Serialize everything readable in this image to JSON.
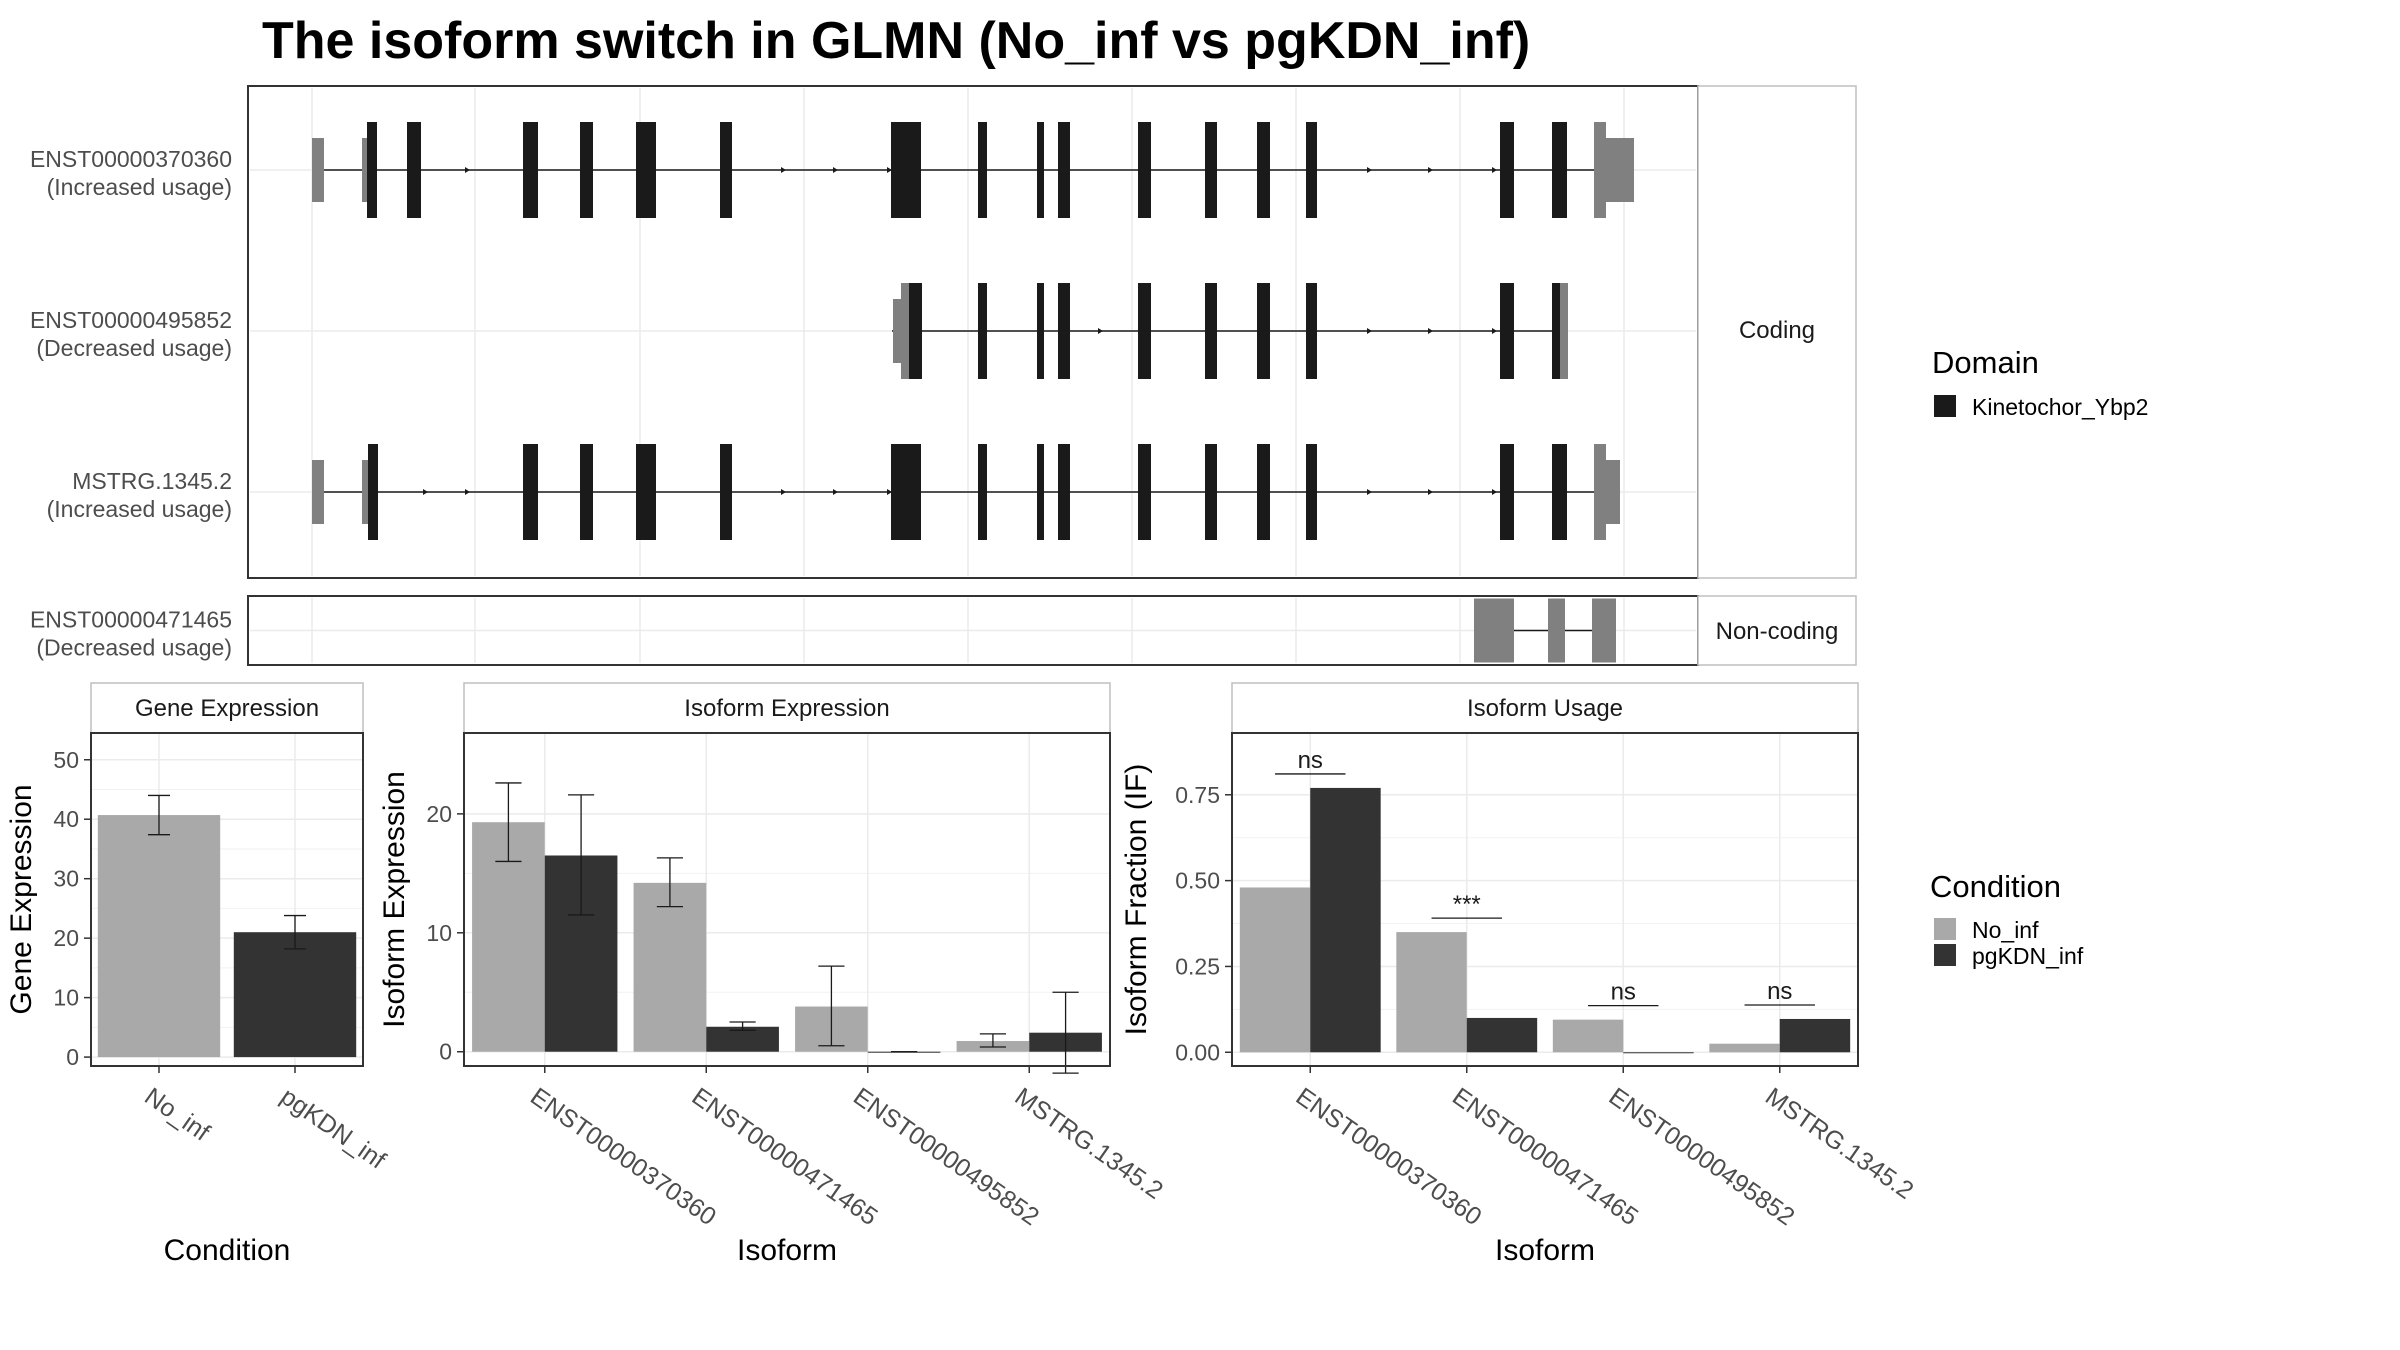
{
  "title": "The isoform switch in GLMN (No_inf vs pgKDN_inf)",
  "colors": {
    "domain": "#1a1a1a",
    "utr": "#808080",
    "no_inf": "#a9a9a9",
    "pgkdn_inf": "#333333",
    "grid": "#ebebeb",
    "border": "#333333",
    "axis_text": "#4d4d4d"
  },
  "chart_data": [
    {
      "type": "structure",
      "name": "isoform-structures",
      "transcripts": [
        {
          "id": "ENST00000370360",
          "note": "(Increased usage)",
          "facet": "Coding"
        },
        {
          "id": "ENST00000495852",
          "note": "(Decreased usage)",
          "facet": "Coding"
        },
        {
          "id": "MSTRG.1345.2",
          "note": "(Increased usage)",
          "facet": "Coding"
        },
        {
          "id": "ENST00000471465",
          "note": "(Decreased usage)",
          "facet": "Non-coding"
        }
      ],
      "facets": [
        "Coding",
        "Non-coding"
      ],
      "legend": {
        "title": "Domain",
        "items": [
          "Kinetochor_Ybp2"
        ]
      }
    },
    {
      "type": "bar",
      "name": "gene-expression",
      "panel_title": "Gene Expression",
      "xlabel": "Condition",
      "ylabel": "Gene Expression",
      "categories": [
        "No_inf",
        "pgKDN_inf"
      ],
      "values": [
        40.7,
        21.0
      ],
      "errors": [
        [
          37.4,
          44.0
        ],
        [
          18.2,
          23.8
        ]
      ],
      "yticks": [
        0,
        10,
        20,
        30,
        40,
        50
      ],
      "ylim": [
        -1.5,
        54.5
      ]
    },
    {
      "type": "bar",
      "name": "isoform-expression",
      "panel_title": "Isoform Expression",
      "xlabel": "Isoform",
      "ylabel": "Isoform Expression",
      "categories": [
        "ENST00000370360",
        "ENST00000471465",
        "ENST00000495852",
        "MSTRG.1345.2"
      ],
      "series": [
        {
          "name": "No_inf",
          "values": [
            19.3,
            14.2,
            3.8,
            0.9
          ],
          "errors": [
            [
              16.0,
              22.6
            ],
            [
              12.2,
              16.3
            ],
            [
              0.5,
              7.2
            ],
            [
              0.4,
              1.5
            ]
          ]
        },
        {
          "name": "pgKDN_inf",
          "values": [
            16.5,
            2.1,
            0.0,
            1.6
          ],
          "errors": [
            [
              11.5,
              21.6
            ],
            [
              1.8,
              2.5
            ],
            [
              0.0,
              0.0
            ],
            [
              -1.8,
              5.0
            ]
          ]
        }
      ],
      "yticks": [
        0,
        10,
        20
      ],
      "ylim": [
        -1.2,
        26.8
      ]
    },
    {
      "type": "bar",
      "name": "isoform-usage",
      "panel_title": "Isoform Usage",
      "xlabel": "Isoform",
      "ylabel": "Isoform Fraction (IF)",
      "categories": [
        "ENST00000370360",
        "ENST00000471465",
        "ENST00000495852",
        "MSTRG.1345.2"
      ],
      "series": [
        {
          "name": "No_inf",
          "values": [
            0.48,
            0.35,
            0.095,
            0.025
          ]
        },
        {
          "name": "pgKDN_inf",
          "values": [
            0.77,
            0.1,
            0.0,
            0.097
          ]
        }
      ],
      "significance": [
        "ns",
        "***",
        "ns",
        "ns"
      ],
      "yticks": [
        "0.00",
        "0.25",
        "0.50",
        "0.75"
      ],
      "ylim": [
        -0.04,
        0.93
      ]
    }
  ],
  "legend_condition": {
    "title": "Condition",
    "items": [
      "No_inf",
      "pgKDN_inf"
    ]
  }
}
